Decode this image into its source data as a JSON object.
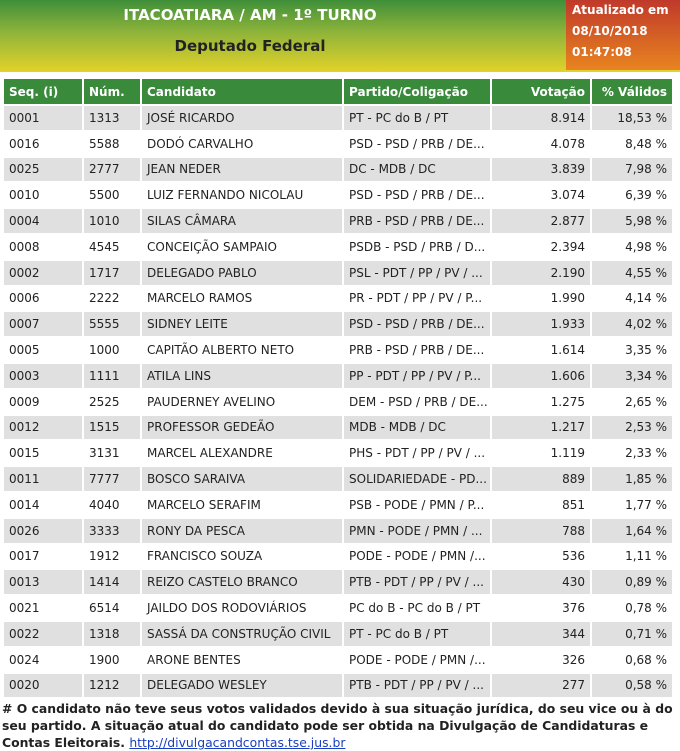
{
  "header": {
    "title": "ITACOATIARA / AM - 1º TURNO",
    "subtitle": "Deputado Federal",
    "updated": [
      "Atualizado em",
      "08/10/2018",
      "01:47:08"
    ]
  },
  "table": {
    "columns": [
      "Seq. (i)",
      "Núm.",
      "Candidato",
      "Partido/Coligação",
      "Votação",
      "% Válidos"
    ],
    "rows": [
      [
        "0001",
        "1313",
        "JOSÉ RICARDO",
        "PT - PC do B / PT",
        "8.914",
        "18,53 %"
      ],
      [
        "0016",
        "5588",
        "DODÓ CARVALHO",
        "PSD - PSD / PRB / DE...",
        "4.078",
        "8,48 %"
      ],
      [
        "0025",
        "2777",
        "JEAN NEDER",
        "DC - MDB / DC",
        "3.839",
        "7,98 %"
      ],
      [
        "0010",
        "5500",
        "LUIZ FERNANDO NICOLAU",
        "PSD - PSD / PRB / DE...",
        "3.074",
        "6,39 %"
      ],
      [
        "0004",
        "1010",
        "SILAS CÂMARA",
        "PRB - PSD / PRB / DE...",
        "2.877",
        "5,98 %"
      ],
      [
        "0008",
        "4545",
        "CONCEIÇÃO SAMPAIO",
        "PSDB - PSD / PRB / D...",
        "2.394",
        "4,98 %"
      ],
      [
        "0002",
        "1717",
        "DELEGADO PABLO",
        "PSL - PDT / PP / PV / ...",
        "2.190",
        "4,55 %"
      ],
      [
        "0006",
        "2222",
        "MARCELO RAMOS",
        "PR - PDT / PP / PV / P...",
        "1.990",
        "4,14 %"
      ],
      [
        "0007",
        "5555",
        "SIDNEY LEITE",
        "PSD - PSD / PRB / DE...",
        "1.933",
        "4,02 %"
      ],
      [
        "0005",
        "1000",
        "CAPITÃO ALBERTO NETO",
        "PRB - PSD / PRB / DE...",
        "1.614",
        "3,35 %"
      ],
      [
        "0003",
        "1111",
        "ATILA LINS",
        "PP - PDT / PP / PV / P...",
        "1.606",
        "3,34 %"
      ],
      [
        "0009",
        "2525",
        "PAUDERNEY AVELINO",
        "DEM - PSD / PRB / DE...",
        "1.275",
        "2,65 %"
      ],
      [
        "0012",
        "1515",
        "PROFESSOR GEDEÃO",
        "MDB - MDB / DC",
        "1.217",
        "2,53 %"
      ],
      [
        "0015",
        "3131",
        "MARCEL ALEXANDRE",
        "PHS - PDT / PP / PV / ...",
        "1.119",
        "2,33 %"
      ],
      [
        "0011",
        "7777",
        "BOSCO SARAIVA",
        "SOLIDARIEDADE - PD...",
        "889",
        "1,85 %"
      ],
      [
        "0014",
        "4040",
        "MARCELO SERAFIM",
        "PSB - PODE / PMN / P...",
        "851",
        "1,77 %"
      ],
      [
        "0026",
        "3333",
        "RONY DA PESCA",
        "PMN - PODE / PMN / ...",
        "788",
        "1,64 %"
      ],
      [
        "0017",
        "1912",
        "FRANCISCO SOUZA",
        "PODE - PODE / PMN /...",
        "536",
        "1,11 %"
      ],
      [
        "0013",
        "1414",
        "REIZO CASTELO BRANCO",
        "PTB - PDT / PP / PV / ...",
        "430",
        "0,89 %"
      ],
      [
        "0021",
        "6514",
        "JAILDO DOS RODOVIÁRIOS",
        "PC do B - PC do B / PT",
        "376",
        "0,78 %"
      ],
      [
        "0022",
        "1318",
        "SASSÁ DA CONSTRUÇÃO CIVIL",
        "PT - PC do B / PT",
        "344",
        "0,71 %"
      ],
      [
        "0024",
        "1900",
        "ARONE BENTES",
        "PODE - PODE / PMN /...",
        "326",
        "0,68 %"
      ],
      [
        "0020",
        "1212",
        "DELEGADO WESLEY",
        "PTB - PDT / PP / PV / ...",
        "277",
        "0,58 %"
      ]
    ]
  },
  "footer": {
    "text": "# O candidato não teve seus votos validados devido à sua situação jurídica, do seu vice ou à do seu partido. A situação atual do candidato pode ser obtida na Divulgação de Candidaturas e Contas Eleitorais.",
    "link": "http://divulgacandcontas.tse.jus.br"
  }
}
